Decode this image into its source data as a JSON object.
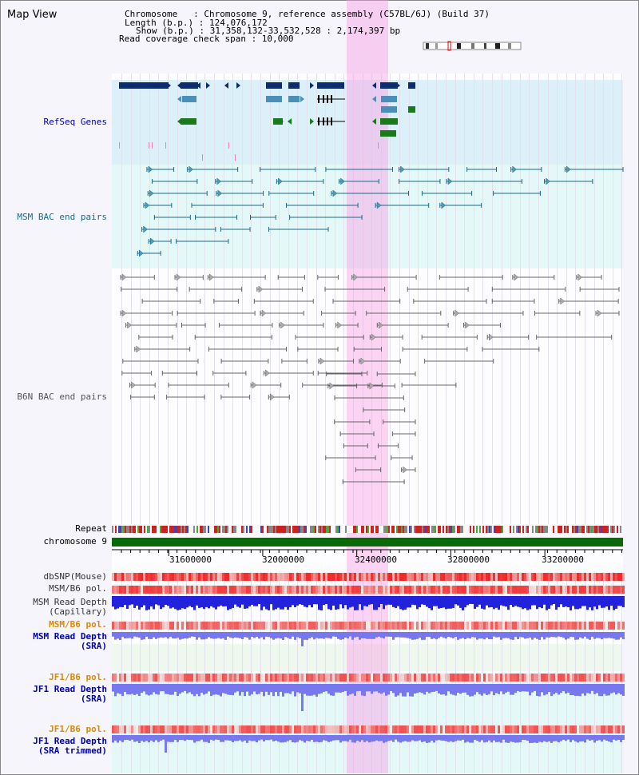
{
  "title": "Map View",
  "info": {
    "chromosome": "Chromosome   : Chromosome 9, reference assembly (C57BL/6J) (Build 37)",
    "length": "Length (b.p.) : 124,076,172",
    "show": "Show (b.p.) : 31,358,132-33,532,528 : 2,174,397 bp",
    "coverage": "Read coverage check span : 10,000"
  },
  "tracks": {
    "refseq": "RefSeq Genes",
    "msm_bac": "MSM BAC end pairs",
    "b6n_bac": "B6N BAC end pairs",
    "repeat": "Repeat",
    "chromosome": "chromosome 9",
    "dbsnp": "dbSNP(Mouse)",
    "msm_b6_pol": "MSM/B6 pol.",
    "msm_depth_cap": "MSM Read Depth\n(Capillary)",
    "msm_b6_pol2": "MSM/B6 pol.",
    "msm_depth_sra": "MSM Read Depth\n(SRA)",
    "jf1_b6_pol": "JF1/B6 pol.",
    "jf1_depth_sra": "JF1 Read Depth\n(SRA)",
    "jf1_b6_pol2": "JF1/B6 pol.",
    "jf1_depth_trim": "JF1 Read Depth\n(SRA trimmed)"
  },
  "axis": {
    "ticks": [
      "31600000",
      "32000000",
      "32400000",
      "32800000",
      "33200000"
    ],
    "tick_values": [
      31600000,
      32000000,
      32400000,
      32800000,
      33200000
    ],
    "range": [
      31358132,
      33532528
    ]
  },
  "highlight_range": [
    32358000,
    32534000
  ],
  "colors": {
    "refseq_bg": "#dcf0fa",
    "bac_bg": "#e4f8f8",
    "refseq_dark": "#0c2e6c",
    "refseq_mid": "#4a8fb8",
    "refseq_green": "#1a7a1a",
    "msm_line": "#1a6a8a",
    "b6n_line": "#666666",
    "chromosome_bar": "#0a6a0a",
    "depth_blue": "#2222dd",
    "depth_violet": "#7777ee",
    "label_blue": "#0000aa",
    "label_orange": "#dd8800"
  }
}
